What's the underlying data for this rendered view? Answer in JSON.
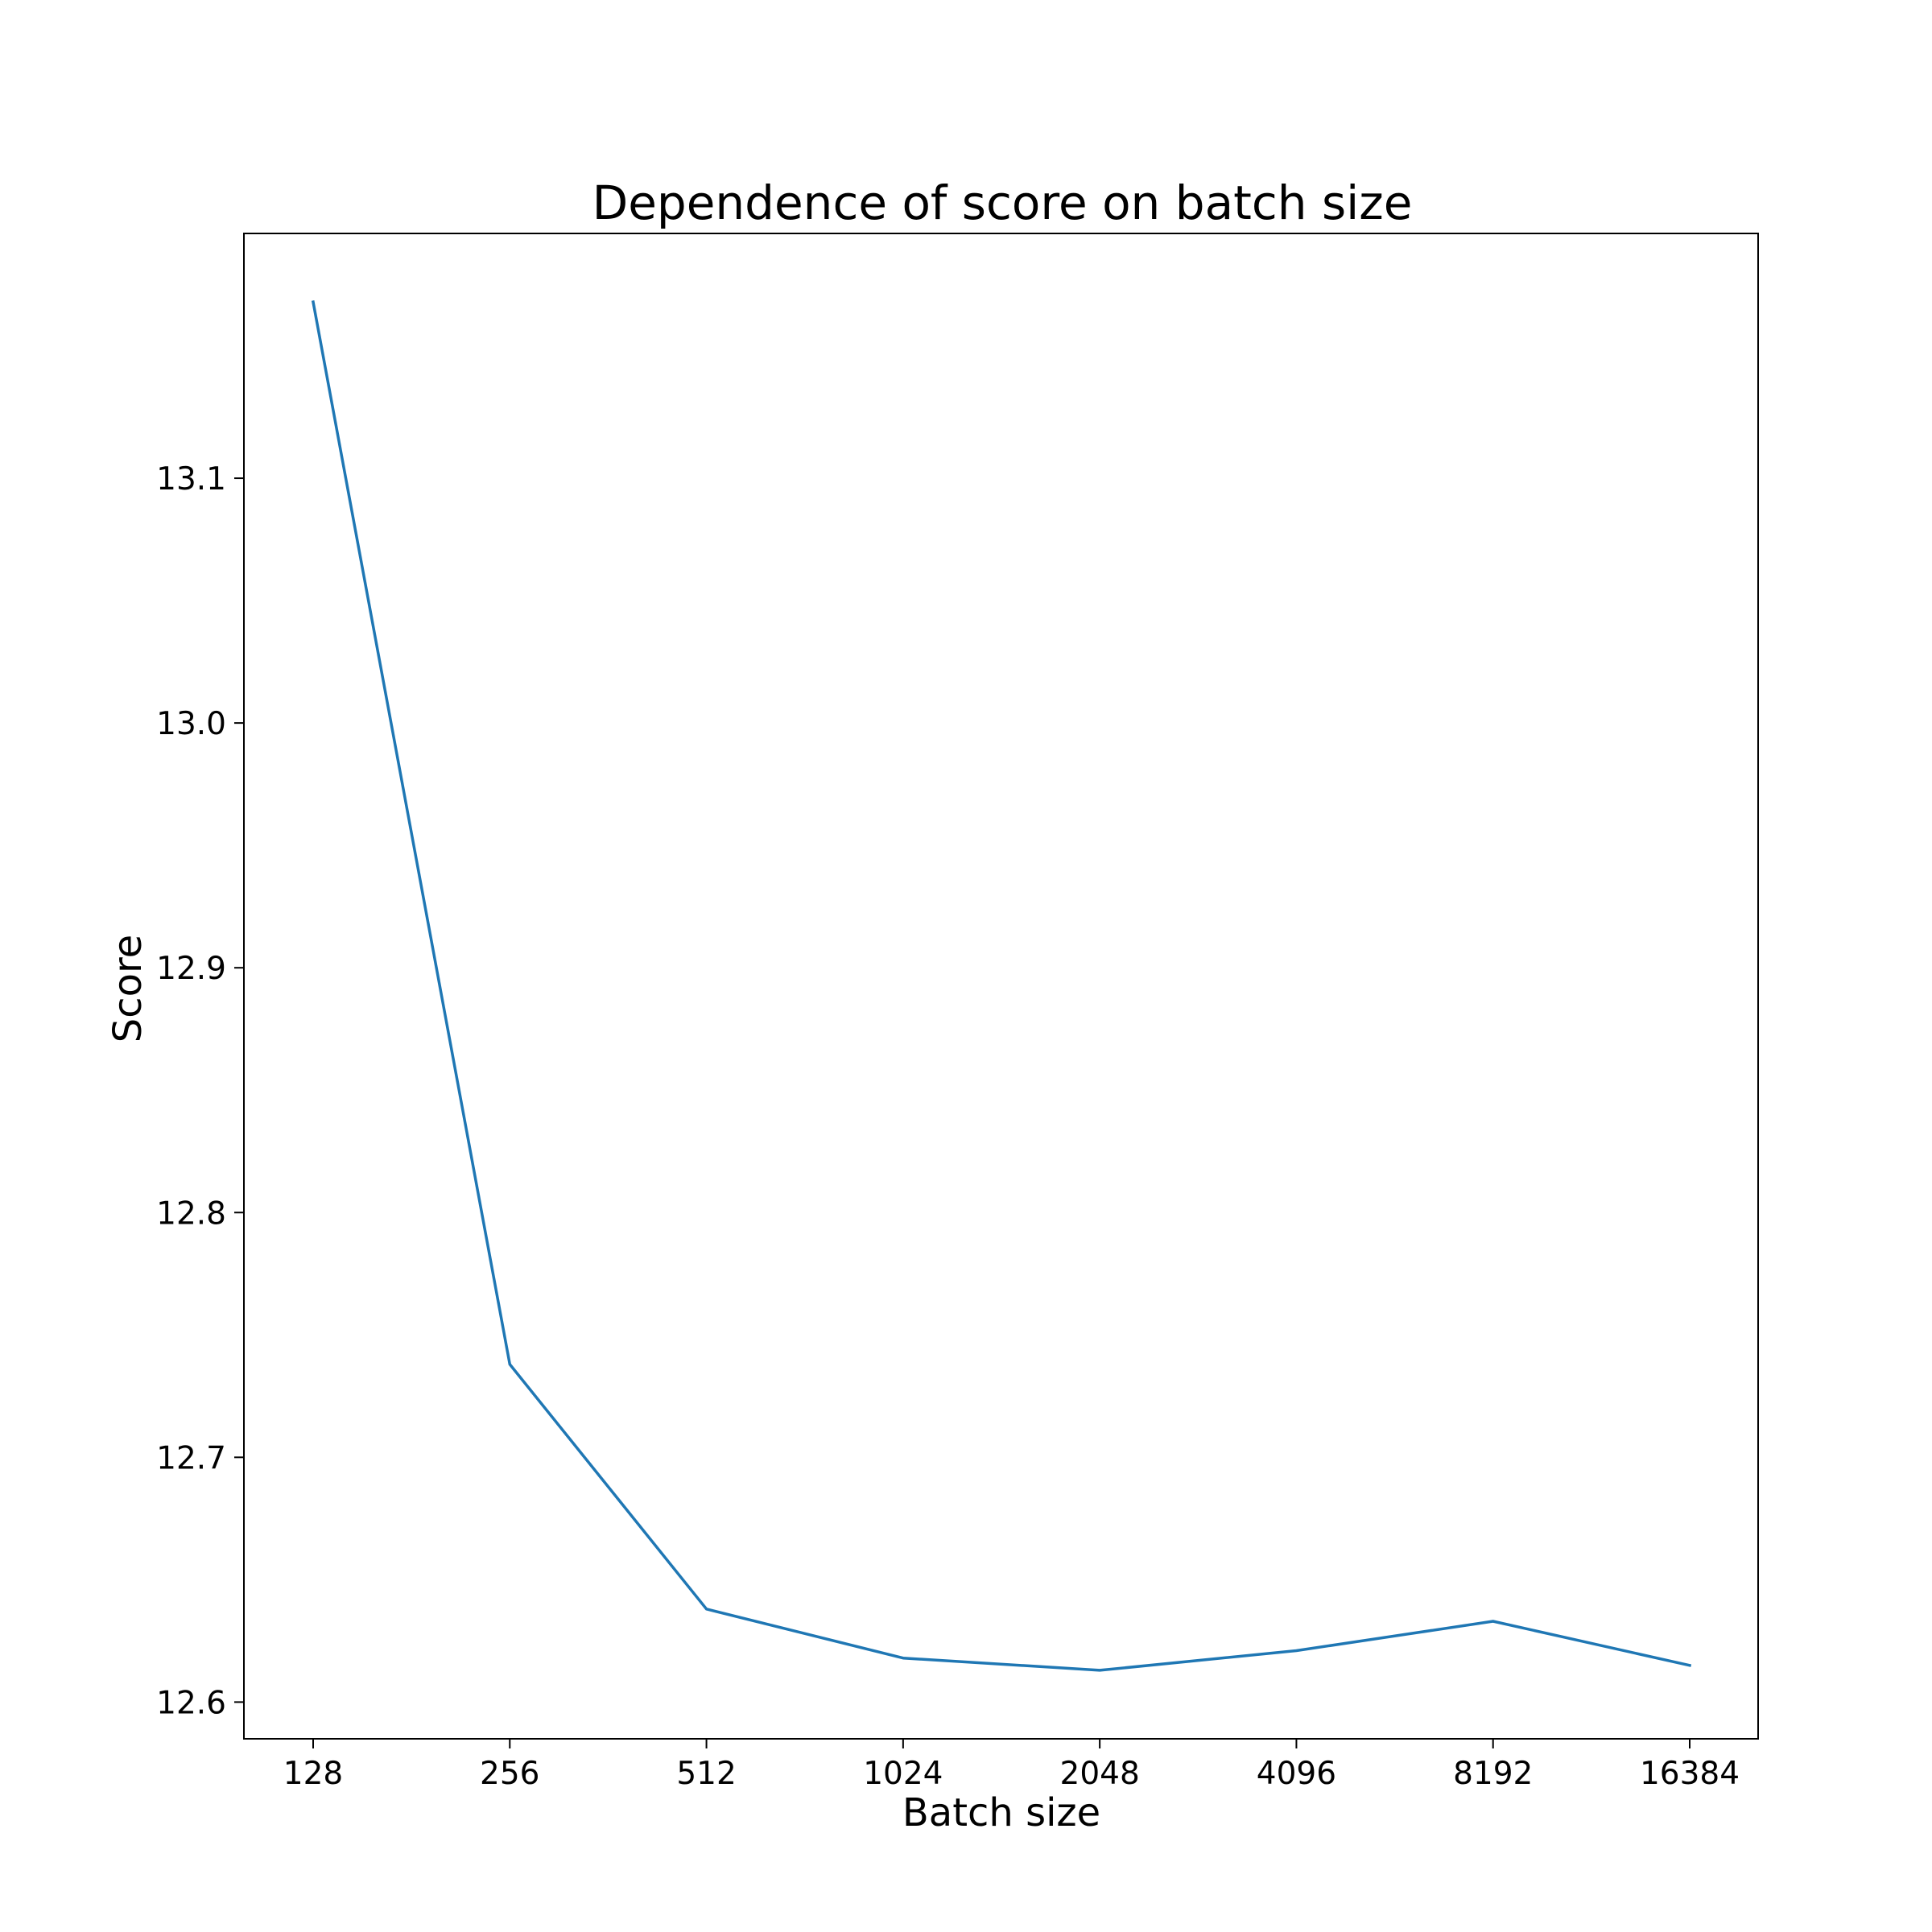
{
  "chart_data": {
    "type": "line",
    "title": "Dependence of score on batch size",
    "xlabel": "Batch size",
    "ylabel": "Score",
    "x_scale": "log2",
    "categories": [
      "128",
      "256",
      "512",
      "1024",
      "2048",
      "4096",
      "8192",
      "16384"
    ],
    "x": [
      128,
      256,
      512,
      1024,
      2048,
      4096,
      8192,
      16384
    ],
    "series": [
      {
        "values": [
          13.172,
          12.738,
          12.638,
          12.618,
          12.613,
          12.621,
          12.633,
          12.615
        ],
        "color": "#1f77b4"
      }
    ],
    "ylim": [
      12.585,
      13.2
    ],
    "yticks": [
      12.6,
      12.7,
      12.8,
      12.9,
      13.0,
      13.1
    ],
    "ytick_labels": [
      "12.6",
      "12.7",
      "12.8",
      "12.9",
      "13.0",
      "13.1"
    ],
    "grid": false,
    "legend": false
  }
}
